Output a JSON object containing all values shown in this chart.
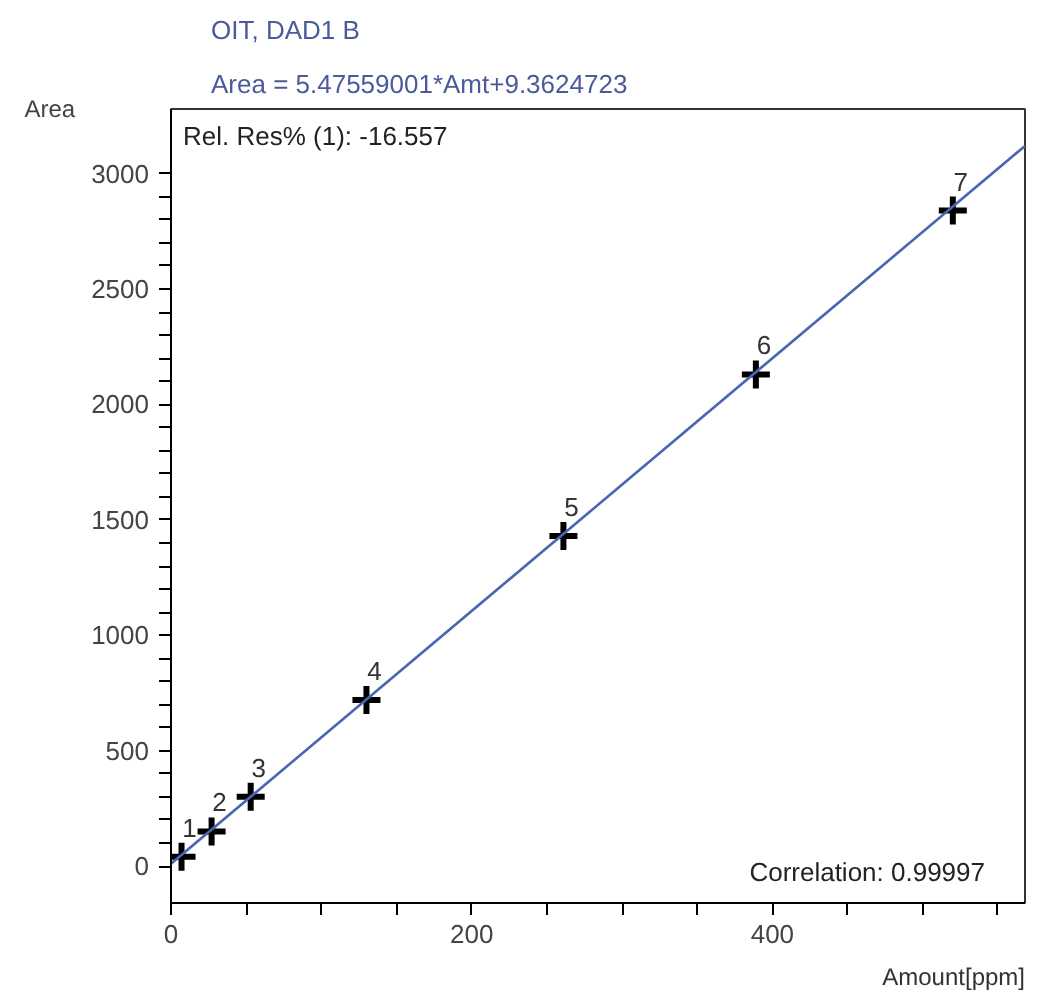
{
  "chart_data": {
    "type": "scatter",
    "title": "OIT, DAD1 B",
    "subtitle": "Area = 5.47559001*Amt+9.3624723",
    "xlabel": "Amount[ppm]",
    "ylabel": "Area",
    "series": [
      {
        "color": "#000000",
        "marker": "cross",
        "x": [
          7,
          27,
          53,
          130,
          261,
          389,
          520
        ],
        "values": [
          40,
          150,
          300,
          720,
          1430,
          2130,
          2840
        ]
      },
      {
        "type": "line",
        "color": "#4a66b0",
        "marker": "none",
        "x": [
          0,
          568
        ],
        "values": [
          10,
          3120
        ]
      }
    ],
    "annotations": [
      {
        "text": "1",
        "x": 7,
        "y": 40
      },
      {
        "text": "2",
        "x": 27,
        "y": 150
      },
      {
        "text": "3",
        "x": 53,
        "y": 300
      },
      {
        "text": "4",
        "x": 130,
        "y": 720
      },
      {
        "text": "5",
        "x": 261,
        "y": 1430
      },
      {
        "text": "6",
        "x": 389,
        "y": 2130
      },
      {
        "text": "7",
        "x": 520,
        "y": 2840
      },
      "Rel. Res% (1): -16.557",
      "Correlation: 0.99997"
    ],
    "xlim": [
      0,
      568
    ],
    "ylim": [
      -160,
      3280
    ],
    "xticks": [
      0,
      {
        "value": 50,
        "label": null
      },
      {
        "value": 100,
        "label": null
      },
      {
        "value": 150,
        "label": null
      },
      200,
      {
        "value": 250,
        "label": null
      },
      {
        "value": 300,
        "label": null
      },
      {
        "value": 350,
        "label": null
      },
      400,
      {
        "value": 450,
        "label": null
      },
      {
        "value": 500,
        "label": null
      },
      {
        "value": 550,
        "label": null
      }
    ],
    "yticks": [
      0,
      {
        "value": 100,
        "label": null
      },
      {
        "value": 200,
        "label": null
      },
      {
        "value": 300,
        "label": null
      },
      {
        "value": 400,
        "label": null
      },
      500,
      {
        "value": 600,
        "label": null
      },
      {
        "value": 700,
        "label": null
      },
      {
        "value": 800,
        "label": null
      },
      {
        "value": 900,
        "label": null
      },
      1000,
      {
        "value": 1100,
        "label": null
      },
      {
        "value": 1200,
        "label": null
      },
      {
        "value": 1300,
        "label": null
      },
      {
        "value": 1400,
        "label": null
      },
      1500,
      {
        "value": 1600,
        "label": null
      },
      {
        "value": 1700,
        "label": null
      },
      {
        "value": 1800,
        "label": null
      },
      {
        "value": 1900,
        "label": null
      },
      2000,
      {
        "value": 2100,
        "label": null
      },
      {
        "value": 2200,
        "label": null
      },
      {
        "value": 2300,
        "label": null
      },
      {
        "value": 2400,
        "label": null
      },
      2500,
      {
        "value": 2600,
        "label": null
      },
      {
        "value": 2700,
        "label": null
      },
      {
        "value": 2800,
        "label": null
      },
      {
        "value": 2900,
        "label": null
      },
      3000
    ],
    "grid": false
  }
}
